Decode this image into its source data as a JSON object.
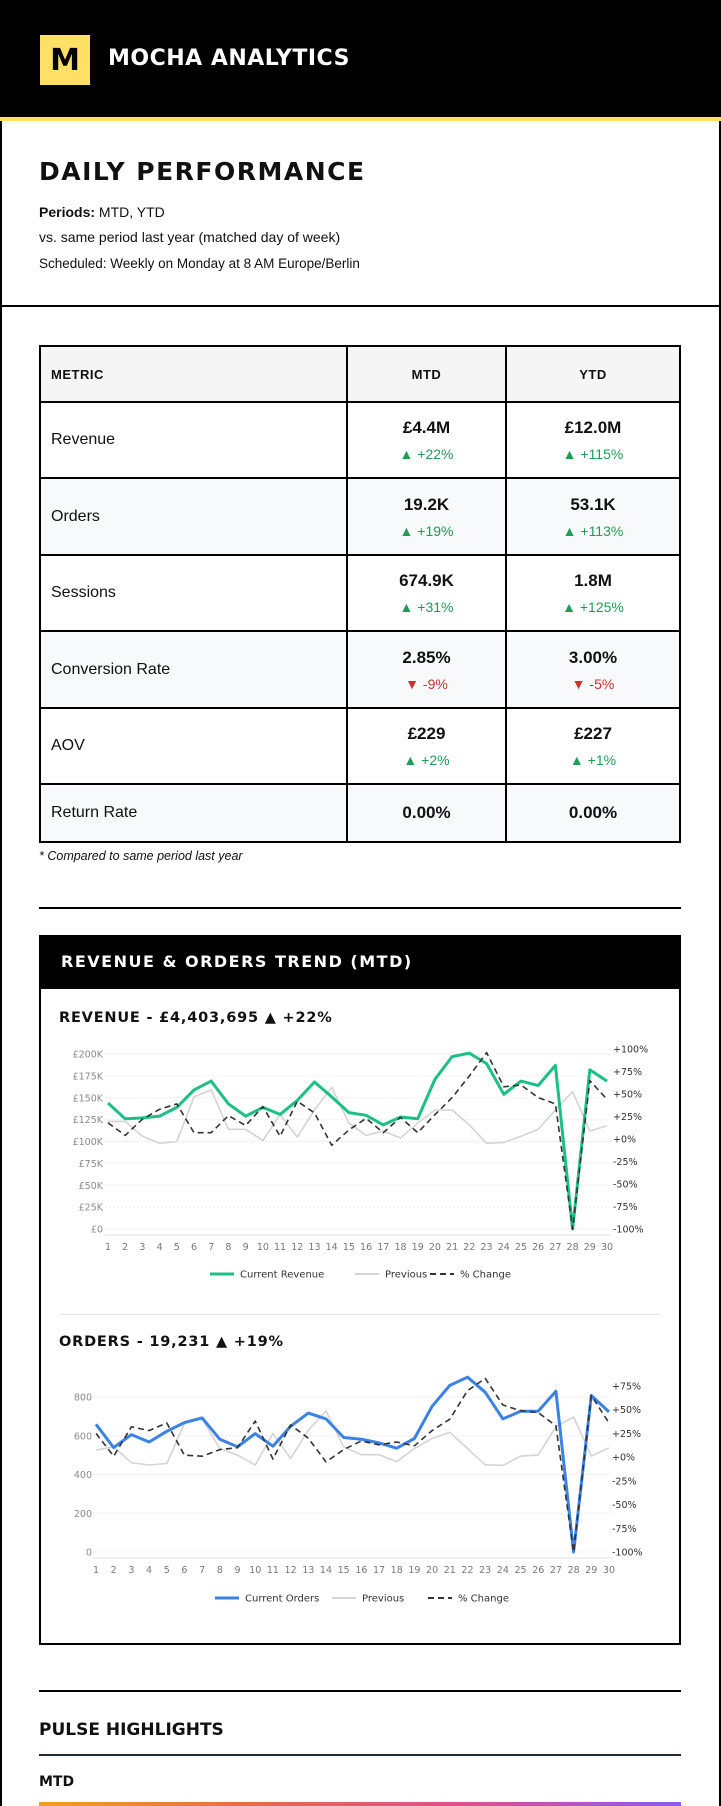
{
  "header": {
    "logo_letter": "M",
    "brand": "MOCHA ANALYTICS"
  },
  "intro": {
    "title": "DAILY PERFORMANCE",
    "periods_label": "Periods:",
    "periods_value": "MTD, YTD",
    "comparison": "vs. same period last year (matched day of week)",
    "schedule": "Scheduled: Weekly on Monday at 8 AM Europe/Berlin"
  },
  "colors": {
    "brand_yellow": "#ffe066",
    "up": "#1f9d55",
    "down": "#d32f2f",
    "revenue": "#1dbf84",
    "orders": "#3b82e6",
    "previous": "#d4d4d4",
    "change": "#333333"
  },
  "table": {
    "headers": [
      "METRIC",
      "MTD",
      "YTD"
    ],
    "rows": [
      {
        "metric": "Revenue",
        "mtd": "£4.4M",
        "mtd_change": "▲ +22%",
        "mtd_dir": "up",
        "ytd": "£12.0M",
        "ytd_change": "▲ +115%",
        "ytd_dir": "up"
      },
      {
        "metric": "Orders",
        "mtd": "19.2K",
        "mtd_change": "▲ +19%",
        "mtd_dir": "up",
        "ytd": "53.1K",
        "ytd_change": "▲ +113%",
        "ytd_dir": "up"
      },
      {
        "metric": "Sessions",
        "mtd": "674.9K",
        "mtd_change": "▲ +31%",
        "mtd_dir": "up",
        "ytd": "1.8M",
        "ytd_change": "▲ +125%",
        "ytd_dir": "up"
      },
      {
        "metric": "Conversion Rate",
        "mtd": "2.85%",
        "mtd_change": "▼ -9%",
        "mtd_dir": "down",
        "ytd": "3.00%",
        "ytd_change": "▼ -5%",
        "ytd_dir": "down"
      },
      {
        "metric": "AOV",
        "mtd": "£229",
        "mtd_change": "▲ +2%",
        "mtd_dir": "up",
        "ytd": "£227",
        "ytd_change": "▲ +1%",
        "ytd_dir": "up"
      },
      {
        "metric": "Return Rate",
        "mtd": "0.00%",
        "ytd": "0.00%"
      }
    ],
    "footnote": "* Compared to same period last year"
  },
  "trend": {
    "title": "REVENUE & ORDERS TREND (MTD)"
  },
  "chart_data": [
    {
      "type": "line",
      "title": "REVENUE - £4,403,695 ▲ +22%",
      "x": [
        1,
        2,
        3,
        4,
        5,
        6,
        7,
        8,
        9,
        10,
        11,
        12,
        13,
        14,
        15,
        16,
        17,
        18,
        19,
        20,
        21,
        22,
        23,
        24,
        25,
        26,
        27,
        28,
        29,
        30
      ],
      "x_tick_labels": [
        "1",
        "2",
        "3",
        "4",
        "5",
        "6",
        "7",
        "8",
        "9",
        "10",
        "11",
        "12",
        "13",
        "14",
        "15",
        "16",
        "17",
        "18",
        "19",
        "20",
        "21",
        "22",
        "23",
        "24",
        "25",
        "26",
        "27",
        "28",
        "29",
        "30"
      ],
      "y_left": {
        "ylim": [
          0,
          200000
        ],
        "ticks": [
          0,
          25000,
          50000,
          75000,
          100000,
          125000,
          150000,
          175000,
          200000
        ],
        "tick_labels": [
          "£0",
          "£25K",
          "£50K",
          "£75K",
          "£100K",
          "£125K",
          "£150K",
          "£175K",
          "£200K"
        ]
      },
      "y_right": {
        "ylim": [
          -100,
          100
        ],
        "ticks": [
          -100,
          -75,
          -50,
          -25,
          0,
          25,
          50,
          75,
          100
        ],
        "tick_labels": [
          "-100%",
          "-75%",
          "-50%",
          "-25%",
          "+0%",
          "+25%",
          "+50%",
          "+75%",
          "+100%"
        ]
      },
      "grid": true,
      "legend": "bottom",
      "series": [
        {
          "name": "Current Revenue",
          "axis": "left",
          "style": "solid",
          "color": "#1dbf84",
          "values": [
            144000,
            126000,
            127000,
            129000,
            139000,
            159000,
            169000,
            143000,
            129000,
            139000,
            131000,
            147000,
            168000,
            151000,
            133000,
            130000,
            119000,
            128000,
            126000,
            171000,
            197000,
            201000,
            189000,
            154000,
            169000,
            164000,
            187000,
            0,
            182000,
            169000
          ]
        },
        {
          "name": "Previous",
          "axis": "left",
          "style": "solid",
          "color": "#d4d4d4",
          "values": [
            123000,
            123000,
            106000,
            98000,
            100000,
            151000,
            159000,
            114000,
            114000,
            101000,
            131000,
            105000,
            136000,
            162000,
            121000,
            107000,
            112000,
            104000,
            121000,
            136000,
            136000,
            119000,
            98000,
            99000,
            106000,
            114000,
            136000,
            157000,
            112000,
            118000
          ]
        },
        {
          "name": "% Change",
          "axis": "right",
          "style": "dashed",
          "color": "#333333",
          "values": [
            18,
            4,
            22,
            33,
            39,
            7,
            7,
            26,
            15,
            36,
            3,
            42,
            29,
            -7,
            10,
            23,
            7,
            24,
            7,
            27,
            46,
            70,
            96,
            58,
            60,
            46,
            39,
            -100,
            65,
            44
          ]
        }
      ]
    },
    {
      "type": "line",
      "title": "ORDERS - 19,231 ▲ +19%",
      "x": [
        1,
        2,
        3,
        4,
        5,
        6,
        7,
        8,
        9,
        10,
        11,
        12,
        13,
        14,
        15,
        16,
        17,
        18,
        19,
        20,
        21,
        22,
        23,
        24,
        25,
        26,
        27,
        28,
        29,
        30
      ],
      "x_tick_labels": [
        "1",
        "2",
        "3",
        "4",
        "5",
        "6",
        "7",
        "8",
        "9",
        "10",
        "11",
        "12",
        "13",
        "14",
        "15",
        "16",
        "17",
        "18",
        "19",
        "20",
        "21",
        "22",
        "23",
        "24",
        "25",
        "26",
        "27",
        "28",
        "29",
        "30"
      ],
      "y_left": {
        "ylim": [
          0,
          800
        ],
        "ticks": [
          0,
          200,
          400,
          600,
          800
        ],
        "tick_labels": [
          "0",
          "200",
          "400",
          "600",
          "800"
        ]
      },
      "y_right": {
        "ylim": [
          -100,
          75
        ],
        "ticks": [
          -100,
          -75,
          -50,
          -25,
          0,
          25,
          50,
          75
        ],
        "tick_labels": [
          "-100%",
          "-75%",
          "-50%",
          "-25%",
          "+0%",
          "+25%",
          "+50%",
          "+75%"
        ]
      },
      "grid": true,
      "legend": "bottom",
      "series": [
        {
          "name": "Current Orders",
          "axis": "left",
          "style": "solid",
          "color": "#3b82e6",
          "values": [
            659,
            539,
            606,
            568,
            623,
            668,
            692,
            582,
            543,
            611,
            546,
            649,
            717,
            687,
            591,
            582,
            563,
            536,
            586,
            752,
            860,
            902,
            825,
            687,
            726,
            726,
            830,
            0,
            808,
            723
          ]
        },
        {
          "name": "Previous",
          "axis": "left",
          "style": "solid",
          "color": "#d4d4d4",
          "values": [
            526,
            543,
            461,
            449,
            457,
            663,
            688,
            534,
            500,
            449,
            611,
            483,
            628,
            728,
            543,
            502,
            502,
            466,
            534,
            586,
            618,
            534,
            450,
            447,
            495,
            500,
            646,
            697,
            495,
            538
          ]
        },
        {
          "name": "% Change",
          "axis": "right",
          "style": "dashed",
          "color": "#333333",
          "values": [
            25,
            1,
            32,
            28,
            36,
            2,
            1,
            8,
            10,
            38,
            -2,
            34,
            20,
            -5,
            8,
            17,
            13,
            16,
            12,
            28,
            40,
            70,
            83,
            55,
            49,
            47,
            33,
            -100,
            65,
            36
          ]
        }
      ]
    }
  ],
  "pulse": {
    "title": "PULSE HIGHLIGHTS",
    "period": "MTD"
  }
}
